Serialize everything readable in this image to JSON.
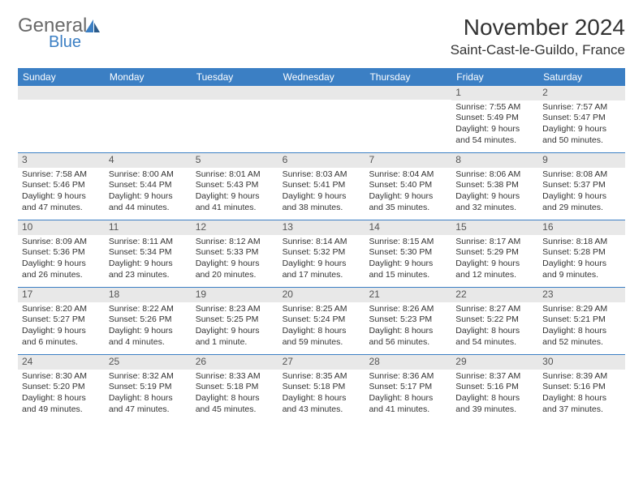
{
  "logo": {
    "word1": "General",
    "word2": "Blue",
    "icon_color": "#3b7fc4"
  },
  "title": "November 2024",
  "location": "Saint-Cast-le-Guildo, France",
  "colors": {
    "header_bg": "#3b7fc4",
    "header_text": "#ffffff",
    "daynum_bg": "#e8e8e8",
    "row_border": "#3b7fc4",
    "body_text": "#333333"
  },
  "typography": {
    "title_fontsize": 28,
    "location_fontsize": 17,
    "dayheader_fontsize": 12,
    "cell_fontsize": 10.5
  },
  "day_names": [
    "Sunday",
    "Monday",
    "Tuesday",
    "Wednesday",
    "Thursday",
    "Friday",
    "Saturday"
  ],
  "weeks": [
    [
      {
        "num": "",
        "sunrise": "",
        "sunset": "",
        "daylight": ""
      },
      {
        "num": "",
        "sunrise": "",
        "sunset": "",
        "daylight": ""
      },
      {
        "num": "",
        "sunrise": "",
        "sunset": "",
        "daylight": ""
      },
      {
        "num": "",
        "sunrise": "",
        "sunset": "",
        "daylight": ""
      },
      {
        "num": "",
        "sunrise": "",
        "sunset": "",
        "daylight": ""
      },
      {
        "num": "1",
        "sunrise": "Sunrise: 7:55 AM",
        "sunset": "Sunset: 5:49 PM",
        "daylight": "Daylight: 9 hours and 54 minutes."
      },
      {
        "num": "2",
        "sunrise": "Sunrise: 7:57 AM",
        "sunset": "Sunset: 5:47 PM",
        "daylight": "Daylight: 9 hours and 50 minutes."
      }
    ],
    [
      {
        "num": "3",
        "sunrise": "Sunrise: 7:58 AM",
        "sunset": "Sunset: 5:46 PM",
        "daylight": "Daylight: 9 hours and 47 minutes."
      },
      {
        "num": "4",
        "sunrise": "Sunrise: 8:00 AM",
        "sunset": "Sunset: 5:44 PM",
        "daylight": "Daylight: 9 hours and 44 minutes."
      },
      {
        "num": "5",
        "sunrise": "Sunrise: 8:01 AM",
        "sunset": "Sunset: 5:43 PM",
        "daylight": "Daylight: 9 hours and 41 minutes."
      },
      {
        "num": "6",
        "sunrise": "Sunrise: 8:03 AM",
        "sunset": "Sunset: 5:41 PM",
        "daylight": "Daylight: 9 hours and 38 minutes."
      },
      {
        "num": "7",
        "sunrise": "Sunrise: 8:04 AM",
        "sunset": "Sunset: 5:40 PM",
        "daylight": "Daylight: 9 hours and 35 minutes."
      },
      {
        "num": "8",
        "sunrise": "Sunrise: 8:06 AM",
        "sunset": "Sunset: 5:38 PM",
        "daylight": "Daylight: 9 hours and 32 minutes."
      },
      {
        "num": "9",
        "sunrise": "Sunrise: 8:08 AM",
        "sunset": "Sunset: 5:37 PM",
        "daylight": "Daylight: 9 hours and 29 minutes."
      }
    ],
    [
      {
        "num": "10",
        "sunrise": "Sunrise: 8:09 AM",
        "sunset": "Sunset: 5:36 PM",
        "daylight": "Daylight: 9 hours and 26 minutes."
      },
      {
        "num": "11",
        "sunrise": "Sunrise: 8:11 AM",
        "sunset": "Sunset: 5:34 PM",
        "daylight": "Daylight: 9 hours and 23 minutes."
      },
      {
        "num": "12",
        "sunrise": "Sunrise: 8:12 AM",
        "sunset": "Sunset: 5:33 PM",
        "daylight": "Daylight: 9 hours and 20 minutes."
      },
      {
        "num": "13",
        "sunrise": "Sunrise: 8:14 AM",
        "sunset": "Sunset: 5:32 PM",
        "daylight": "Daylight: 9 hours and 17 minutes."
      },
      {
        "num": "14",
        "sunrise": "Sunrise: 8:15 AM",
        "sunset": "Sunset: 5:30 PM",
        "daylight": "Daylight: 9 hours and 15 minutes."
      },
      {
        "num": "15",
        "sunrise": "Sunrise: 8:17 AM",
        "sunset": "Sunset: 5:29 PM",
        "daylight": "Daylight: 9 hours and 12 minutes."
      },
      {
        "num": "16",
        "sunrise": "Sunrise: 8:18 AM",
        "sunset": "Sunset: 5:28 PM",
        "daylight": "Daylight: 9 hours and 9 minutes."
      }
    ],
    [
      {
        "num": "17",
        "sunrise": "Sunrise: 8:20 AM",
        "sunset": "Sunset: 5:27 PM",
        "daylight": "Daylight: 9 hours and 6 minutes."
      },
      {
        "num": "18",
        "sunrise": "Sunrise: 8:22 AM",
        "sunset": "Sunset: 5:26 PM",
        "daylight": "Daylight: 9 hours and 4 minutes."
      },
      {
        "num": "19",
        "sunrise": "Sunrise: 8:23 AM",
        "sunset": "Sunset: 5:25 PM",
        "daylight": "Daylight: 9 hours and 1 minute."
      },
      {
        "num": "20",
        "sunrise": "Sunrise: 8:25 AM",
        "sunset": "Sunset: 5:24 PM",
        "daylight": "Daylight: 8 hours and 59 minutes."
      },
      {
        "num": "21",
        "sunrise": "Sunrise: 8:26 AM",
        "sunset": "Sunset: 5:23 PM",
        "daylight": "Daylight: 8 hours and 56 minutes."
      },
      {
        "num": "22",
        "sunrise": "Sunrise: 8:27 AM",
        "sunset": "Sunset: 5:22 PM",
        "daylight": "Daylight: 8 hours and 54 minutes."
      },
      {
        "num": "23",
        "sunrise": "Sunrise: 8:29 AM",
        "sunset": "Sunset: 5:21 PM",
        "daylight": "Daylight: 8 hours and 52 minutes."
      }
    ],
    [
      {
        "num": "24",
        "sunrise": "Sunrise: 8:30 AM",
        "sunset": "Sunset: 5:20 PM",
        "daylight": "Daylight: 8 hours and 49 minutes."
      },
      {
        "num": "25",
        "sunrise": "Sunrise: 8:32 AM",
        "sunset": "Sunset: 5:19 PM",
        "daylight": "Daylight: 8 hours and 47 minutes."
      },
      {
        "num": "26",
        "sunrise": "Sunrise: 8:33 AM",
        "sunset": "Sunset: 5:18 PM",
        "daylight": "Daylight: 8 hours and 45 minutes."
      },
      {
        "num": "27",
        "sunrise": "Sunrise: 8:35 AM",
        "sunset": "Sunset: 5:18 PM",
        "daylight": "Daylight: 8 hours and 43 minutes."
      },
      {
        "num": "28",
        "sunrise": "Sunrise: 8:36 AM",
        "sunset": "Sunset: 5:17 PM",
        "daylight": "Daylight: 8 hours and 41 minutes."
      },
      {
        "num": "29",
        "sunrise": "Sunrise: 8:37 AM",
        "sunset": "Sunset: 5:16 PM",
        "daylight": "Daylight: 8 hours and 39 minutes."
      },
      {
        "num": "30",
        "sunrise": "Sunrise: 8:39 AM",
        "sunset": "Sunset: 5:16 PM",
        "daylight": "Daylight: 8 hours and 37 minutes."
      }
    ]
  ]
}
